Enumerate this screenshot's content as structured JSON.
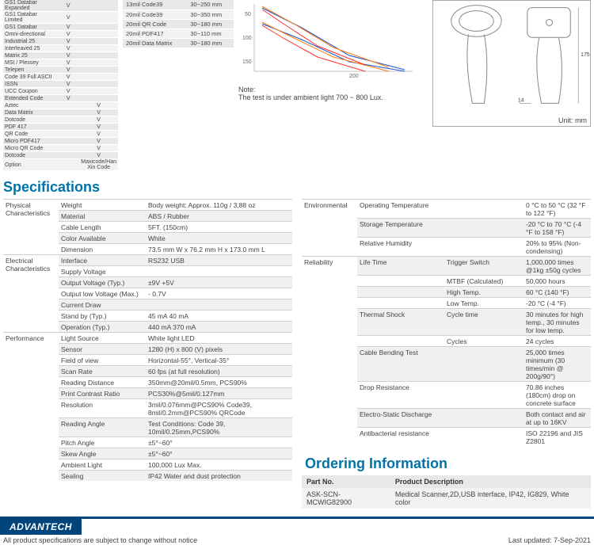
{
  "symbologies": {
    "rows": [
      [
        "GS1 Databar Expanded",
        "V",
        ""
      ],
      [
        "GS1 Databar Limited",
        "V",
        ""
      ],
      [
        "GS1 Databar",
        "V",
        ""
      ],
      [
        "Omni-directional",
        "V",
        ""
      ],
      [
        "Industrial 25",
        "V",
        ""
      ],
      [
        "Interleaved 25",
        "V",
        ""
      ],
      [
        "Matrix 25",
        "V",
        ""
      ],
      [
        "MSI / Plessey",
        "V",
        ""
      ],
      [
        "Telepen",
        "V",
        ""
      ],
      [
        "Code 39 Full ASCII",
        "V",
        ""
      ],
      [
        "ISSN",
        "V",
        ""
      ],
      [
        "UCC Coupon",
        "V",
        ""
      ],
      [
        "Extended Code",
        "V",
        ""
      ],
      [
        "Aztec",
        "",
        "V"
      ],
      [
        "Data Matrix",
        "",
        "V"
      ],
      [
        "Dotcode",
        "",
        "V"
      ],
      [
        "PDF 417",
        "",
        "V"
      ],
      [
        "QR Code",
        "",
        "V"
      ],
      [
        "Micro PDF417",
        "",
        "V"
      ],
      [
        "Micro QR Code",
        "",
        "V"
      ],
      [
        "Dotcode",
        "",
        "V"
      ],
      [
        "Option",
        "",
        "Maxicode/Han Xin Code"
      ]
    ],
    "footer": ""
  },
  "decode": {
    "rows": [
      [
        "13mil Code39",
        "30~250 mm"
      ],
      [
        "20mil Code39",
        "30~350 mm"
      ],
      [
        "20mil QR Code",
        "30~180 mm"
      ],
      [
        "20mil PDF417",
        "30~110 mm"
      ],
      [
        "20mil Data Matrix",
        "30~180 mm"
      ]
    ]
  },
  "chart": {
    "note_title": "Note:",
    "note_text": "The test is under ambient light 700 ~ 800 Lux.",
    "axis_y": [
      "50",
      "100",
      "150"
    ],
    "axis_x": [
      "200"
    ],
    "line_colors": [
      "#1b4fd1",
      "#1b4fd1",
      "#ff7f0e",
      "#ff7f0e",
      "#ff3030",
      "#ff3030"
    ]
  },
  "drawing": {
    "dim_w": "14",
    "dim_h": "175",
    "unit": "Unit: mm"
  },
  "headings": {
    "specs": "Specifications",
    "ordering": "Ordering Information"
  },
  "specs_left": [
    {
      "cat": "Physical Characteristics",
      "rows": [
        [
          "Weight",
          "Body weight: Approx. 110g / 3,88 oz"
        ],
        [
          "Material",
          "ABS / Rubber"
        ],
        [
          "Cable Length",
          "5FT. (150cm)"
        ],
        [
          "Color Available",
          "White"
        ],
        [
          "Dimension",
          "73.5 mm W x 76.2 mm H x 173.0 mm L"
        ]
      ]
    },
    {
      "cat": "Electrical Characteristics",
      "rows": [
        [
          "Interface",
          "RS232               USB"
        ],
        [
          "Supply Voltage",
          ""
        ],
        [
          "Output Voltage (Typ.)",
          "±9V                   +5V"
        ],
        [
          "Output low Voltage (Max.)",
          "-                       0.7V"
        ],
        [
          "Current Draw",
          ""
        ],
        [
          "Stand by (Typ.)",
          "45 mA              40 mA"
        ],
        [
          "Operation (Typ.)",
          "440 mA            370 mA"
        ]
      ]
    },
    {
      "cat": "Performance",
      "rows": [
        [
          "Light Source",
          "White light LED"
        ],
        [
          "Sensor",
          "1280 (H) x 800 (V) pixels"
        ],
        [
          "Field of view",
          "Horizontal-55°, Vertical-35°"
        ],
        [
          "Scan Rate",
          "60 fps (at full resolution)"
        ],
        [
          "Reading Distance",
          "350mm@20mil/0.5mm, PCS90%"
        ],
        [
          "Print Contrast Ratio",
          "PCS30%@5mil/0.127mm"
        ],
        [
          "Resolution",
          "3mil/0.076mm@PCS90% Code39, 8mil/0.2mm@PCS90% QRCode"
        ],
        [
          "Reading Angle",
          "Test Conditions: Code 39, 10mil/0.25mm,PCS90%"
        ],
        [
          "Pitch Angle",
          "±5°~60°"
        ],
        [
          "Skew Angle",
          "±5°~60°"
        ],
        [
          "Ambient Light",
          "100,000 Lux Max."
        ],
        [
          "Sealing",
          "IP42 Water and dust protection"
        ]
      ]
    }
  ],
  "specs_right": [
    {
      "cat": "Environmental",
      "rows": [
        [
          "Operating Temperature",
          "",
          "0 °C to 50 °C (32 °F to 122 °F)"
        ],
        [
          "Storage Temperature",
          "",
          "-20 °C to 70 °C (-4 °F to 158 °F)"
        ],
        [
          "Relative Humidity",
          "",
          "20% to 95% (Non-condensing)"
        ]
      ]
    },
    {
      "cat": "Reliability",
      "rows": [
        [
          "Life Time",
          "Trigger Switch",
          "1,000,000 times @1kg ±50g cycles"
        ],
        [
          "",
          "MTBF (Calculated)",
          "50,000 hours"
        ],
        [
          "",
          "High Temp.",
          "60 °C (140 °F)"
        ],
        [
          "",
          "Low Temp.",
          "-20 °C (-4 °F)"
        ],
        [
          "Thermal Shock",
          "Cycle time",
          "30 minutes for high temp., 30 minutes for low temp."
        ],
        [
          "",
          "Cycles",
          "24 cycles"
        ],
        [
          "Cable Bending Test",
          "",
          "25,000 times minimum (30 times/min @ 200g/90°)"
        ],
        [
          "Drop Resistance",
          "",
          "70.86 inches (180cm) drop on concrete surface"
        ],
        [
          "Electro-Static Discharge",
          "",
          "Both contact and air at up to 16KV"
        ],
        [
          "Antibacterial resistance",
          "",
          "ISO 22196 and JIS Z2801"
        ]
      ]
    }
  ],
  "ordering": {
    "headers": [
      "Part No.",
      "Product Description"
    ],
    "rows": [
      [
        "ASK-SCN-MCWIG82900",
        "Medical Scanner,2D,USB interface, IP42, IG829, White color"
      ]
    ]
  },
  "footer": {
    "logo": "ADVANTECH",
    "left": "All product specifications are subject to change without notice",
    "right": "Last updated: 7-Sep-2021"
  }
}
